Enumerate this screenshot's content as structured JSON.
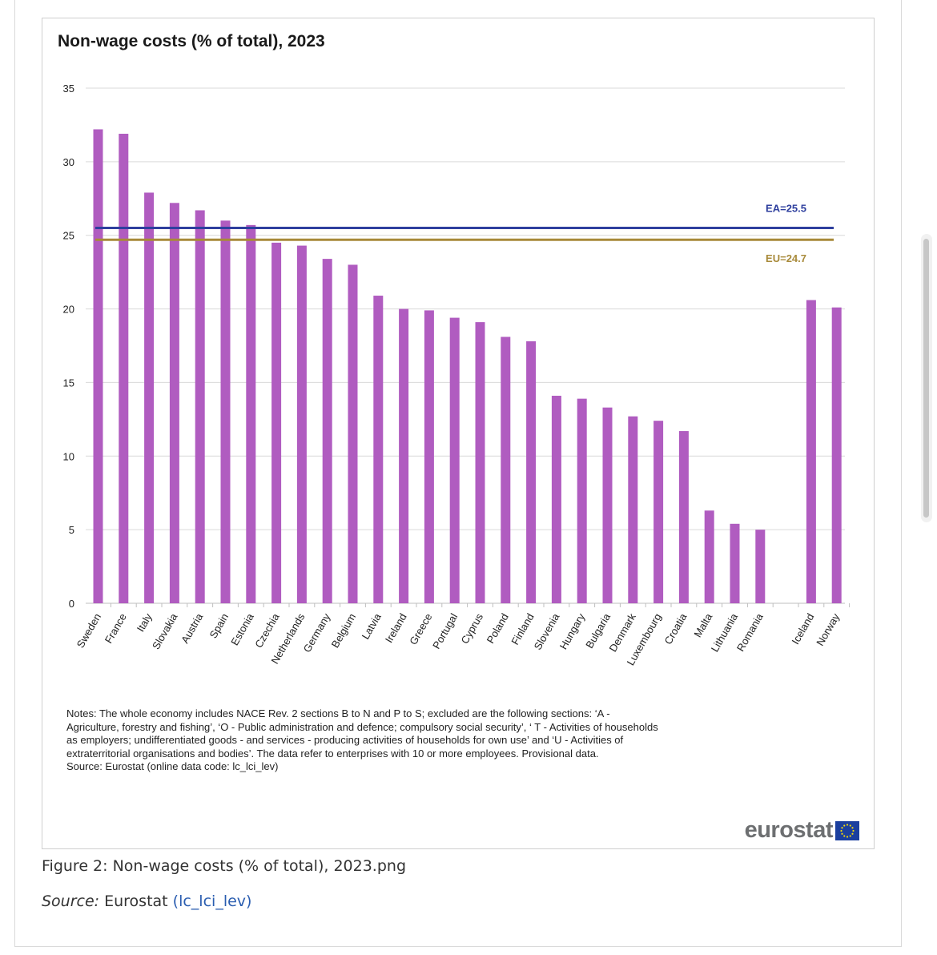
{
  "page": {
    "figure_caption": "Figure 2: Non-wage costs (% of total), 2023.png",
    "source_label": "Source:",
    "source_text": " Eurostat ",
    "source_link": "(lc_lci_lev)",
    "logo_text": "eurostat"
  },
  "notes": {
    "line1": "Notes: The whole economy includes NACE Rev. 2 sections B to N and P to S; excluded are the following sections: ‘A -",
    "line2": "Agriculture, forestry and fishing’, ‘O - Public administration and defence; compulsory social security’, ‘ T - Activities of households",
    "line3": "as employers; undifferentiated goods - and services - producing activities of households for own use’ and ‘U - Activities of",
    "line4": "extraterritorial organisations and bodies’. The data refer to enterprises with 10 or more employees. Provisional data.",
    "line5": "Source: Eurostat (online data code: lc_lci_lev)"
  },
  "colors": {
    "bar": "#b05cc0",
    "ea_line": "#2e3f9e",
    "eu_line": "#a88a3a",
    "grid": "#d9d9d9"
  },
  "chart_data": {
    "type": "bar",
    "title": "Non-wage costs (% of total), 2023",
    "xlabel": "",
    "ylabel": "",
    "ylim": [
      0,
      35
    ],
    "yticks": [
      0,
      5,
      10,
      15,
      20,
      25,
      30,
      35
    ],
    "grid": true,
    "categories": [
      "Sweden",
      "France",
      "Italy",
      "Slovakia",
      "Austria",
      "Spain",
      "Estonia",
      "Czechia",
      "Netherlands",
      "Germany",
      "Belgium",
      "Latvia",
      "Ireland",
      "Greece",
      "Portugal",
      "Cyprus",
      "Poland",
      "Finland",
      "Slovenia",
      "Hungary",
      "Bulgaria",
      "Denmark",
      "Luxembourg",
      "Croatia",
      "Malta",
      "Lithuania",
      "Romania",
      "",
      "Iceland",
      "Norway"
    ],
    "values": [
      32.2,
      31.9,
      27.9,
      27.2,
      26.7,
      26.0,
      25.7,
      24.5,
      24.3,
      23.4,
      23.0,
      20.9,
      20.0,
      19.9,
      19.4,
      19.1,
      18.1,
      17.8,
      14.1,
      13.9,
      13.3,
      12.7,
      12.4,
      11.7,
      6.3,
      5.4,
      5.0,
      null,
      20.6,
      20.1
    ],
    "reference_lines": [
      {
        "name": "EA",
        "label": "EA=25.5",
        "value": 25.5
      },
      {
        "name": "EU",
        "label": "EU=24.7",
        "value": 24.7
      }
    ]
  }
}
